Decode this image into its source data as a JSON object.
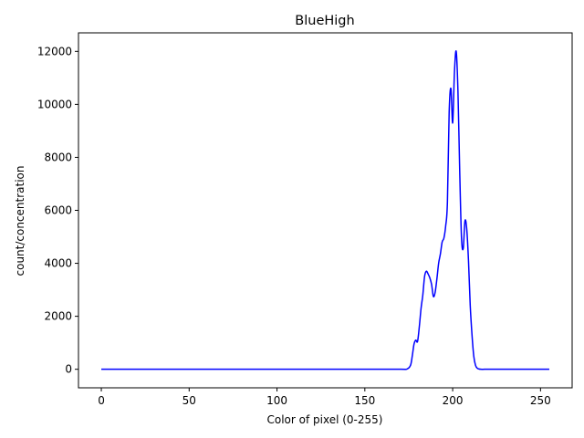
{
  "chart_data": {
    "type": "line",
    "title": "BlueHigh",
    "xlabel": "Color of pixel (0-255)",
    "ylabel": "count/concentration",
    "xlim": [
      -13,
      268
    ],
    "ylim": [
      -700,
      12700
    ],
    "xticks": [
      0,
      50,
      100,
      150,
      200,
      250
    ],
    "yticks": [
      0,
      2000,
      4000,
      6000,
      8000,
      10000,
      12000
    ],
    "grid": false,
    "color": "#0000ff",
    "series": [
      {
        "x": [
          0,
          50,
          100,
          150,
          170,
          174,
          176,
          177,
          178,
          179,
          180,
          181,
          182,
          183,
          184,
          185,
          186,
          187,
          188,
          189,
          190,
          191,
          192,
          193,
          194,
          195,
          196,
          197,
          198,
          199,
          200,
          201,
          202,
          203,
          204,
          205,
          206,
          207,
          208,
          209,
          210,
          211,
          212,
          213,
          214,
          215,
          216,
          218,
          220,
          230,
          240,
          255
        ],
        "y": [
          0,
          0,
          0,
          0,
          0,
          10,
          150,
          500,
          950,
          1100,
          1050,
          1600,
          2300,
          2800,
          3500,
          3700,
          3600,
          3450,
          3200,
          2750,
          2900,
          3400,
          4000,
          4350,
          4800,
          4950,
          5400,
          6300,
          9700,
          10600,
          9300,
          11200,
          12000,
          10500,
          7500,
          5000,
          4550,
          5600,
          5300,
          4100,
          2400,
          1300,
          500,
          150,
          40,
          10,
          0,
          0,
          0,
          0,
          0,
          0
        ]
      }
    ]
  }
}
